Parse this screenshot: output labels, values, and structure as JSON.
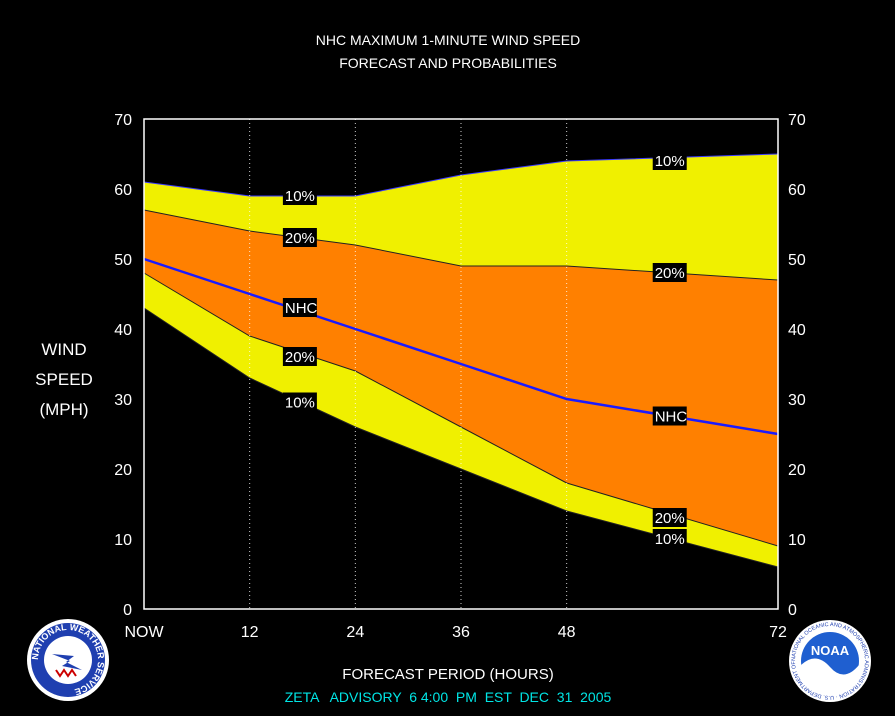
{
  "colors": {
    "background": "#000000",
    "band_10": "#f0f000",
    "band_20": "#ff8000",
    "nhc_line": "#1a1aff",
    "footer": "#00e5e5",
    "text": "#ffffff"
  },
  "logos": {
    "nws": "NATIONAL WEATHER SERVICE",
    "noaa_text": "NOAA",
    "noaa_ring": "NATIONAL OCEANIC AND ATMOSPHERIC ADMINISTRATION · U.S. DEPARTMENT OF COMMERCE"
  },
  "chart_data": {
    "type": "area",
    "title": "NHC MAXIMUM 1-MINUTE WIND SPEED",
    "subtitle": "FORECAST AND PROBABILITIES",
    "ylabel": [
      "WIND",
      "SPEED",
      "(MPH)"
    ],
    "xlabel": "FORECAST PERIOD (HOURS)",
    "footer": "ZETA   ADVISORY  6 4:00  PM  EST  DEC  31  2005",
    "ylim": [
      0,
      70
    ],
    "xlim": [
      0,
      72
    ],
    "yticks": [
      0,
      10,
      20,
      30,
      40,
      50,
      60,
      70
    ],
    "xticks": [
      {
        "x": 0,
        "label": "NOW"
      },
      {
        "x": 12,
        "label": "12"
      },
      {
        "x": 24,
        "label": "24"
      },
      {
        "x": 36,
        "label": "36"
      },
      {
        "x": 48,
        "label": "48"
      },
      {
        "x": 72,
        "label": "72"
      }
    ],
    "grid_x": [
      12,
      24,
      36,
      48
    ],
    "x": [
      0,
      12,
      24,
      36,
      48,
      72
    ],
    "series": [
      {
        "name": "10%",
        "values": [
          61,
          59,
          59,
          62,
          64,
          65
        ]
      },
      {
        "name": "20%",
        "values": [
          57,
          54,
          52,
          49,
          49,
          47
        ]
      },
      {
        "name": "NHC",
        "values": [
          50,
          45,
          40,
          35,
          30,
          25
        ]
      },
      {
        "name": "20%",
        "values": [
          48,
          39,
          34,
          26,
          18,
          9
        ]
      },
      {
        "name": "10%",
        "values": [
          43,
          33,
          26,
          20,
          14,
          6
        ]
      }
    ],
    "annotations": [
      {
        "text": "10%",
        "x": 16,
        "y": 59
      },
      {
        "text": "20%",
        "x": 16,
        "y": 53
      },
      {
        "text": "NHC",
        "x": 16,
        "y": 43
      },
      {
        "text": "20%",
        "x": 16,
        "y": 36
      },
      {
        "text": "10%",
        "x": 16,
        "y": 29.5
      },
      {
        "text": "10%",
        "x": 58,
        "y": 64
      },
      {
        "text": "20%",
        "x": 58,
        "y": 48
      },
      {
        "text": "NHC",
        "x": 58,
        "y": 27.5
      },
      {
        "text": "20%",
        "x": 58,
        "y": 13
      },
      {
        "text": "10%",
        "x": 58,
        "y": 10
      }
    ]
  }
}
